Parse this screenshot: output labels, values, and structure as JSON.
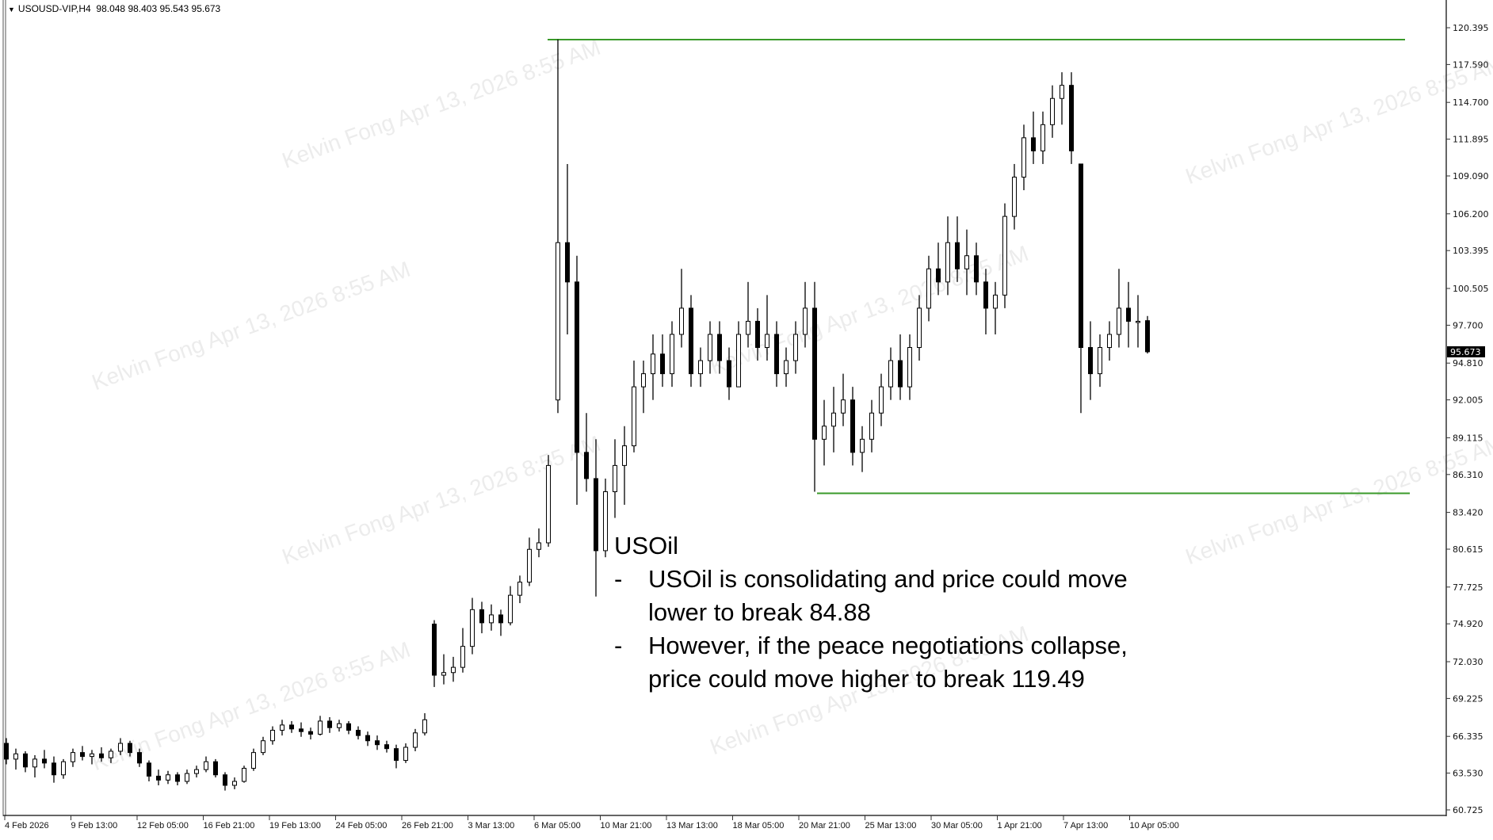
{
  "header": {
    "symbol": "USOUSD-VIP,H4",
    "ohlc": "98.048 98.403 95.543 95.673"
  },
  "watermark": "Kelvin Fong Apr 13, 2026 8:55 AM",
  "annotation": {
    "title": "USOil",
    "bullets": [
      {
        "lines": [
          "USOil is consolidating and price could move",
          "lower to break 84.88"
        ]
      },
      {
        "lines": [
          "However, if the peace negotiations collapse,",
          "price could move higher to break 119.49"
        ]
      }
    ]
  },
  "colors": {
    "level_line": "#3a9a2a",
    "candle": "#000000",
    "price_tag_bg": "#000000"
  },
  "chart_data": {
    "type": "candlestick",
    "title": "",
    "y_ticks": [
      "120.395",
      "117.590",
      "114.700",
      "111.895",
      "109.090",
      "106.200",
      "103.395",
      "100.505",
      "97.700",
      "94.810",
      "92.005",
      "89.115",
      "86.310",
      "83.420",
      "80.615",
      "77.725",
      "74.920",
      "72.030",
      "69.225",
      "66.335",
      "63.530",
      "60.725"
    ],
    "ylim": [
      60.725,
      120.395
    ],
    "x_ticks": [
      "4 Feb 2026",
      "9 Feb 13:00",
      "12 Feb 05:00",
      "16 Feb 21:00",
      "19 Feb 13:00",
      "24 Feb 05:00",
      "26 Feb 21:00",
      "3 Mar 13:00",
      "6 Mar 05:00",
      "10 Mar 21:00",
      "13 Mar 13:00",
      "18 Mar 05:00",
      "20 Mar 21:00",
      "25 Mar 13:00",
      "30 Mar 05:00",
      "1 Apr 21:00",
      "7 Apr 13:00",
      "10 Apr 05:00"
    ],
    "current_price": "95.673",
    "levels": [
      {
        "price": 119.49
      },
      {
        "price": 84.88
      }
    ],
    "grid": false,
    "ohlc": [
      [
        65.8,
        66.2,
        64.2,
        64.6
      ],
      [
        64.6,
        65.4,
        63.8,
        65.0
      ],
      [
        65.0,
        65.2,
        63.6,
        64.0
      ],
      [
        64.0,
        64.9,
        63.2,
        64.6
      ],
      [
        64.6,
        65.3,
        63.9,
        64.3
      ],
      [
        64.3,
        64.8,
        62.8,
        63.4
      ],
      [
        63.4,
        64.6,
        63.1,
        64.4
      ],
      [
        64.4,
        65.4,
        64.0,
        65.1
      ],
      [
        65.1,
        65.6,
        64.5,
        64.8
      ],
      [
        64.8,
        65.3,
        64.2,
        65.0
      ],
      [
        65.0,
        65.5,
        64.4,
        64.7
      ],
      [
        64.7,
        65.4,
        64.3,
        65.2
      ],
      [
        65.2,
        66.2,
        64.9,
        65.8
      ],
      [
        65.8,
        66.0,
        64.8,
        65.1
      ],
      [
        65.1,
        65.4,
        64.0,
        64.3
      ],
      [
        64.3,
        64.5,
        62.9,
        63.3
      ],
      [
        63.3,
        63.8,
        62.6,
        63.0
      ],
      [
        63.0,
        63.7,
        62.7,
        63.4
      ],
      [
        63.4,
        63.6,
        62.6,
        62.9
      ],
      [
        62.9,
        63.8,
        62.7,
        63.5
      ],
      [
        63.5,
        64.1,
        63.2,
        63.8
      ],
      [
        63.8,
        64.8,
        63.6,
        64.4
      ],
      [
        64.4,
        64.6,
        63.2,
        63.4
      ],
      [
        63.4,
        63.6,
        62.2,
        62.6
      ],
      [
        62.6,
        63.2,
        62.3,
        62.9
      ],
      [
        62.9,
        64.1,
        62.8,
        63.9
      ],
      [
        63.9,
        65.4,
        63.7,
        65.1
      ],
      [
        65.1,
        66.3,
        64.9,
        66.0
      ],
      [
        66.0,
        67.1,
        65.7,
        66.8
      ],
      [
        66.8,
        67.6,
        66.4,
        67.2
      ],
      [
        67.2,
        67.5,
        66.6,
        66.9
      ],
      [
        66.9,
        67.4,
        66.3,
        66.7
      ],
      [
        66.7,
        67.0,
        66.1,
        66.5
      ],
      [
        66.5,
        67.9,
        66.4,
        67.5
      ],
      [
        67.5,
        67.8,
        66.6,
        67.0
      ],
      [
        67.0,
        67.6,
        66.7,
        67.3
      ],
      [
        67.3,
        67.5,
        66.5,
        66.8
      ],
      [
        66.8,
        67.1,
        66.1,
        66.4
      ],
      [
        66.4,
        66.7,
        65.6,
        66.0
      ],
      [
        66.0,
        66.4,
        65.3,
        65.7
      ],
      [
        65.7,
        66.0,
        65.1,
        65.4
      ],
      [
        65.4,
        65.7,
        63.9,
        64.5
      ],
      [
        64.5,
        65.8,
        64.3,
        65.5
      ],
      [
        65.5,
        66.9,
        65.2,
        66.6
      ],
      [
        66.6,
        68.1,
        66.4,
        67.6
      ],
      [
        74.9,
        75.2,
        70.1,
        71.0
      ],
      [
        71.0,
        72.6,
        70.3,
        71.2
      ],
      [
        71.2,
        72.4,
        70.5,
        71.6
      ],
      [
        71.6,
        74.6,
        71.2,
        73.2
      ],
      [
        73.2,
        76.9,
        72.6,
        76.0
      ],
      [
        76.0,
        76.6,
        74.2,
        75.0
      ],
      [
        75.0,
        76.4,
        74.4,
        75.6
      ],
      [
        75.6,
        76.0,
        74.0,
        75.0
      ],
      [
        75.0,
        77.8,
        74.8,
        77.1
      ],
      [
        77.1,
        78.6,
        76.5,
        78.1
      ],
      [
        78.1,
        81.5,
        77.8,
        80.6
      ],
      [
        80.6,
        82.2,
        80.0,
        81.1
      ],
      [
        81.1,
        87.8,
        80.8,
        87.0
      ],
      [
        92.0,
        119.5,
        91.0,
        104.0
      ],
      [
        104.0,
        110.0,
        97.0,
        101.0
      ],
      [
        101.0,
        103.0,
        84.0,
        88.0
      ],
      [
        88.0,
        91.0,
        85.0,
        86.0
      ],
      [
        86.0,
        89.0,
        77.0,
        80.5
      ],
      [
        80.5,
        86.0,
        80.0,
        85.0
      ],
      [
        85.0,
        89.0,
        83.0,
        87.0
      ],
      [
        87.0,
        90.0,
        84.0,
        88.5
      ],
      [
        88.5,
        95.0,
        88.0,
        93.0
      ],
      [
        93.0,
        95.0,
        91.0,
        94.0
      ],
      [
        94.0,
        97.0,
        92.0,
        95.5
      ],
      [
        95.5,
        97.0,
        93.0,
        94.0
      ],
      [
        94.0,
        98.0,
        93.0,
        97.0
      ],
      [
        97.0,
        102.0,
        96.0,
        99.0
      ],
      [
        99.0,
        100.0,
        93.0,
        94.0
      ],
      [
        94.0,
        96.0,
        93.0,
        95.0
      ],
      [
        95.0,
        98.0,
        94.0,
        97.0
      ],
      [
        97.0,
        98.0,
        94.0,
        95.0
      ],
      [
        95.0,
        96.0,
        92.0,
        93.0
      ],
      [
        93.0,
        98.0,
        93.0,
        97.0
      ],
      [
        97.0,
        101.0,
        96.0,
        98.0
      ],
      [
        98.0,
        99.0,
        95.0,
        96.0
      ],
      [
        96.0,
        100.0,
        95.0,
        97.0
      ],
      [
        97.0,
        98.0,
        93.0,
        94.0
      ],
      [
        94.0,
        96.0,
        93.0,
        95.0
      ],
      [
        95.0,
        98.0,
        94.0,
        97.0
      ],
      [
        97.0,
        101.0,
        96.0,
        99.0
      ],
      [
        99.0,
        101.0,
        85.0,
        89.0
      ],
      [
        89.0,
        92.0,
        87.0,
        90.0
      ],
      [
        90.0,
        93.0,
        88.0,
        91.0
      ],
      [
        91.0,
        94.0,
        90.0,
        92.0
      ],
      [
        92.0,
        93.0,
        87.0,
        88.0
      ],
      [
        88.0,
        90.0,
        86.5,
        89.0
      ],
      [
        89.0,
        92.0,
        88.0,
        91.0
      ],
      [
        91.0,
        94.0,
        90.0,
        93.0
      ],
      [
        93.0,
        96.0,
        92.0,
        95.0
      ],
      [
        95.0,
        97.0,
        92.0,
        93.0
      ],
      [
        93.0,
        97.0,
        92.0,
        96.0
      ],
      [
        96.0,
        100.0,
        95.0,
        99.0
      ],
      [
        99.0,
        103.0,
        98.0,
        102.0
      ],
      [
        102.0,
        104.0,
        100.0,
        101.0
      ],
      [
        101.0,
        106.0,
        100.0,
        104.0
      ],
      [
        104.0,
        106.0,
        101.0,
        102.0
      ],
      [
        102.0,
        105.0,
        100.0,
        103.0
      ],
      [
        103.0,
        104.0,
        100.0,
        101.0
      ],
      [
        101.0,
        102.0,
        97.0,
        99.0
      ],
      [
        99.0,
        101.0,
        97.0,
        100.0
      ],
      [
        100.0,
        107.0,
        99.0,
        106.0
      ],
      [
        106.0,
        110.0,
        105.0,
        109.0
      ],
      [
        109.0,
        113.0,
        108.0,
        112.0
      ],
      [
        112.0,
        114.0,
        110.0,
        111.0
      ],
      [
        111.0,
        114.0,
        110.0,
        113.0
      ],
      [
        113.0,
        116.0,
        112.0,
        115.0
      ],
      [
        115.0,
        117.0,
        113.0,
        116.0
      ],
      [
        116.0,
        117.0,
        110.0,
        111.0
      ],
      [
        110.0,
        110.0,
        91.0,
        96.0
      ],
      [
        96.0,
        98.0,
        92.0,
        94.0
      ],
      [
        94.0,
        97.0,
        93.0,
        96.0
      ],
      [
        96.0,
        98.0,
        95.0,
        97.0
      ],
      [
        97.0,
        102.0,
        96.0,
        99.0
      ],
      [
        99.0,
        101.0,
        96.0,
        98.0
      ],
      [
        98.0,
        100.0,
        96.0,
        98.0
      ],
      [
        98.048,
        98.403,
        95.543,
        95.673
      ]
    ]
  }
}
